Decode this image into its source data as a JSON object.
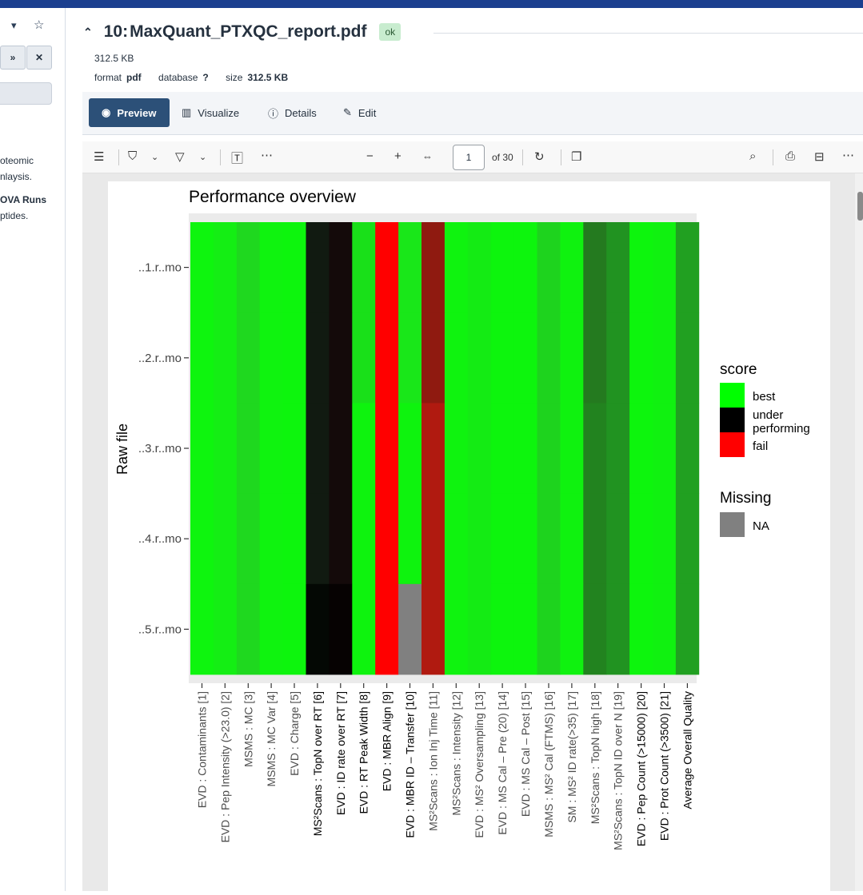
{
  "left_panel": {
    "text_lines": [
      "oteomic",
      "nlaysis.",
      "OVA Runs",
      "ptides."
    ]
  },
  "header": {
    "hid": "10:",
    "name": "MaxQuant_PTXQC_report.pdf",
    "state_badge": "ok",
    "size_line": "312.5 KB",
    "format_label": "format",
    "format_value": "pdf",
    "database_label": "database",
    "database_value": "?",
    "size_label": "size",
    "size_value": "312.5 KB"
  },
  "tabs": [
    {
      "label": "Preview",
      "icon": "eye-icon",
      "active": true
    },
    {
      "label": "Visualize",
      "icon": "chart-icon",
      "active": false
    },
    {
      "label": "Details",
      "icon": "info-icon",
      "active": false
    },
    {
      "label": "Edit",
      "icon": "pencil-icon",
      "active": false
    }
  ],
  "pdf_toolbar": {
    "page_value": "1",
    "page_of": "of 30"
  },
  "chart_data": {
    "type": "heatmap",
    "title": "Performance overview",
    "ylabel": "Raw file",
    "rows": [
      "..1.r..mo",
      "..2.r..mo",
      "..3.r..mo",
      "..4.r..mo",
      "..5.r..mo"
    ],
    "columns": [
      "EVD : Contaminants [1]",
      "EVD : Pep Intensity (>23.0) [2]",
      "MSMS : MC [3]",
      "MSMS : MC Var [4]",
      "EVD : Charge [5]",
      "MS²Scans : TopN over RT [6]",
      "EVD : ID rate over RT [7]",
      "EVD : RT Peak Width [8]",
      "EVD : MBR Align [9]",
      "EVD : MBR ID – Transfer [10]",
      "MS²Scans : Ion Inj Time [11]",
      "MS²Scans : Intensity [12]",
      "EVD : MS² Oversampling [13]",
      "EVD : MS Cal – Pre (20) [14]",
      "EVD : MS Cal – Post [15]",
      "MSMS : MS² Cal (FTMS) [16]",
      "SM : MS² ID rate(>35) [17]",
      "MS²Scans : TopN high [18]",
      "MS²Scans : TopN ID over N [19]",
      "EVD : Pep Count (>15000) [20]",
      "EVD : Prot Count (>3500) [21]",
      "Average Overall Quality"
    ],
    "column_label_bold": [
      false,
      false,
      false,
      false,
      false,
      true,
      true,
      true,
      true,
      true,
      false,
      false,
      false,
      false,
      false,
      false,
      false,
      false,
      false,
      true,
      true,
      true
    ],
    "colors": [
      [
        "#0ef50e",
        "#14ee14",
        "#1fd81f",
        "#0ff30f",
        "#0df50d",
        "#111a11",
        "#140a0a",
        "#19e019",
        "#ff0000",
        "#19e719",
        "#8f1a10",
        "#0ff30f",
        "#14eb14",
        "#0df50d",
        "#0df50d",
        "#1ed31e",
        "#0ff20f",
        "#247a1f",
        "#219321",
        "#0df50d",
        "#10f110",
        "#21a021"
      ],
      [
        "#0ef50e",
        "#14ee14",
        "#1fd81f",
        "#0ff30f",
        "#0df50d",
        "#111a11",
        "#140a0a",
        "#19e019",
        "#ff0000",
        "#19e719",
        "#8f1a10",
        "#0ff30f",
        "#14eb14",
        "#0df50d",
        "#0df50d",
        "#1ed31e",
        "#0ff20f",
        "#247a1f",
        "#219321",
        "#0df50d",
        "#10f110",
        "#21a021"
      ],
      [
        "#0ef50e",
        "#14ee14",
        "#1fd81f",
        "#0ff30f",
        "#0df50d",
        "#111a11",
        "#140a0a",
        "#0ef30e",
        "#ff0000",
        "#0ef30e",
        "#b01a10",
        "#0ff30f",
        "#14eb14",
        "#0df50d",
        "#0df50d",
        "#1ed31e",
        "#0ff20f",
        "#22831f",
        "#219321",
        "#0df50d",
        "#10f110",
        "#21a021"
      ],
      [
        "#0ef50e",
        "#14ee14",
        "#1fd81f",
        "#0ff30f",
        "#0df50d",
        "#111a11",
        "#140a0a",
        "#0ef30e",
        "#ff0000",
        "#0ef30e",
        "#b01a10",
        "#0ff30f",
        "#14eb14",
        "#0df50d",
        "#0df50d",
        "#1ed31e",
        "#0ff20f",
        "#22831f",
        "#219321",
        "#0df50d",
        "#10f110",
        "#21a021"
      ],
      [
        "#0ef50e",
        "#14ee14",
        "#1fd81f",
        "#0ff30f",
        "#0df50d",
        "#040804",
        "#060202",
        "#0ef30e",
        "#ff0000",
        "#808080",
        "#b01a10",
        "#0ff30f",
        "#14eb14",
        "#0df50d",
        "#0df50d",
        "#1ed31e",
        "#0ff20f",
        "#22831f",
        "#219321",
        "#0df50d",
        "#10f110",
        "#21a021"
      ]
    ],
    "legend": {
      "score_title": "score",
      "score_items": [
        {
          "label": "best",
          "color": "#00ff00"
        },
        {
          "label": "under\nperforming",
          "color": "#000000"
        },
        {
          "label": "fail",
          "color": "#ff0000"
        }
      ],
      "missing_title": "Missing",
      "missing_items": [
        {
          "label": "NA",
          "color": "#808080"
        }
      ]
    }
  }
}
